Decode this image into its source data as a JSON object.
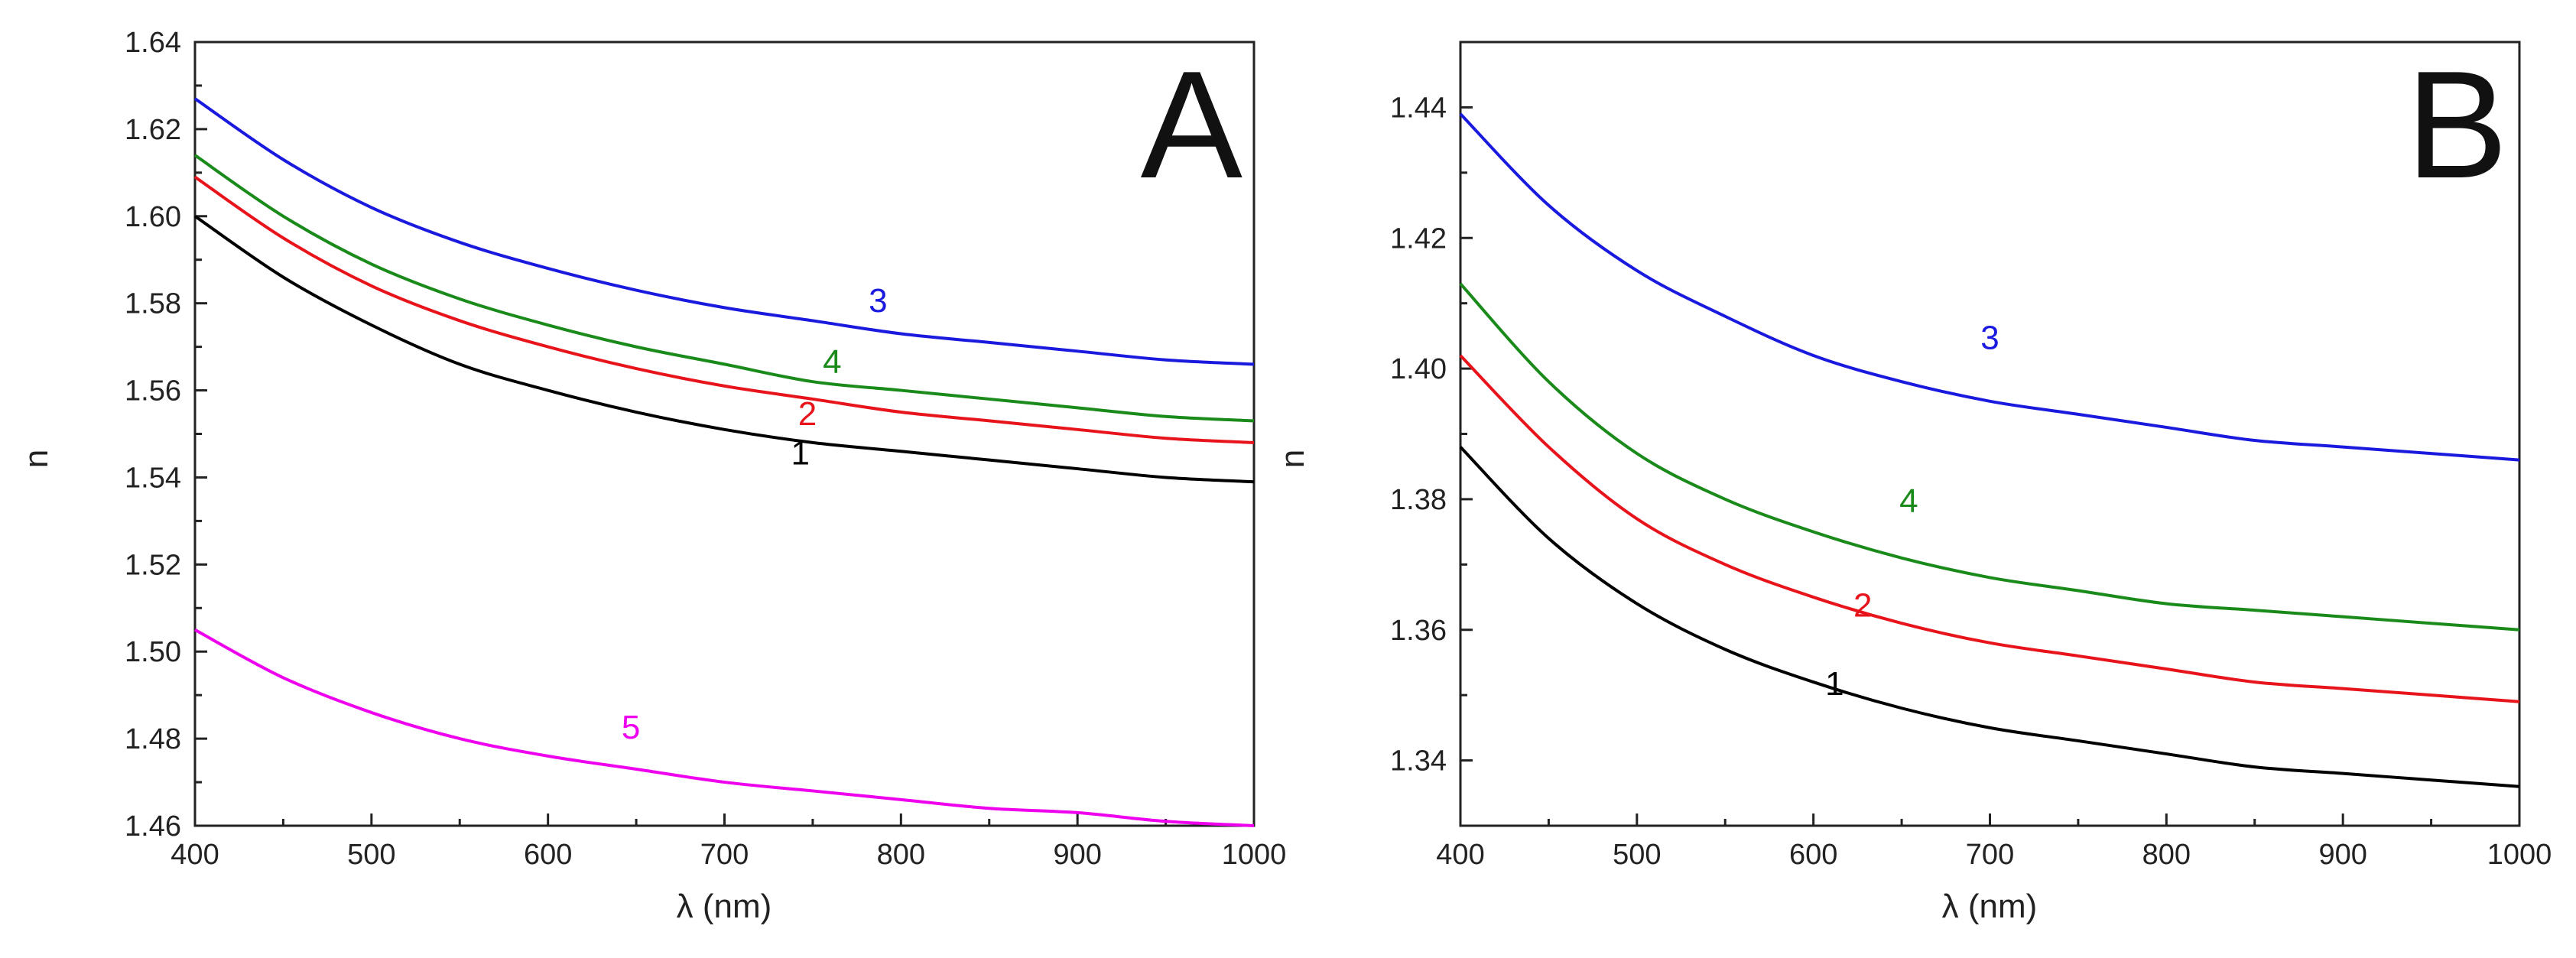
{
  "chart_data": [
    {
      "type": "line",
      "panel": "A",
      "xlabel": "λ (nm)",
      "ylabel": "n",
      "xlim": [
        400,
        1000
      ],
      "ylim": [
        1.46,
        1.64
      ],
      "xticks": [
        400,
        500,
        600,
        700,
        800,
        900,
        1000
      ],
      "yticks": [
        1.46,
        1.48,
        1.5,
        1.52,
        1.54,
        1.56,
        1.58,
        1.6,
        1.62,
        1.64
      ],
      "series": [
        {
          "name": "1",
          "color": "#000000",
          "x": [
            400,
            450,
            500,
            550,
            600,
            650,
            700,
            750,
            800,
            850,
            900,
            950,
            1000
          ],
          "y": [
            1.6,
            1.586,
            1.575,
            1.566,
            1.56,
            1.555,
            1.551,
            1.548,
            1.546,
            1.544,
            1.542,
            1.54,
            1.539
          ],
          "label_at": [
            743,
            1.543
          ]
        },
        {
          "name": "2",
          "color": "#e8141b",
          "x": [
            400,
            450,
            500,
            550,
            600,
            650,
            700,
            750,
            800,
            850,
            900,
            950,
            1000
          ],
          "y": [
            1.609,
            1.595,
            1.584,
            1.576,
            1.57,
            1.565,
            1.561,
            1.558,
            1.555,
            1.553,
            1.551,
            1.549,
            1.548
          ],
          "label_at": [
            747,
            1.552
          ]
        },
        {
          "name": "3",
          "color": "#1a1adf",
          "x": [
            400,
            450,
            500,
            550,
            600,
            650,
            700,
            750,
            800,
            850,
            900,
            950,
            1000
          ],
          "y": [
            1.627,
            1.613,
            1.602,
            1.594,
            1.588,
            1.583,
            1.579,
            1.576,
            1.573,
            1.571,
            1.569,
            1.567,
            1.566
          ],
          "label_at": [
            787,
            1.578
          ]
        },
        {
          "name": "4",
          "color": "#1a8a1a",
          "x": [
            400,
            450,
            500,
            550,
            600,
            650,
            700,
            750,
            800,
            850,
            900,
            950,
            1000
          ],
          "y": [
            1.614,
            1.6,
            1.589,
            1.581,
            1.575,
            1.57,
            1.566,
            1.562,
            1.56,
            1.558,
            1.556,
            1.554,
            1.553
          ],
          "label_at": [
            761,
            1.564
          ]
        },
        {
          "name": "5",
          "color": "#ee00ee",
          "x": [
            400,
            450,
            500,
            550,
            600,
            650,
            700,
            750,
            800,
            850,
            900,
            950,
            1000
          ],
          "y": [
            1.505,
            1.494,
            1.486,
            1.48,
            1.476,
            1.473,
            1.47,
            1.468,
            1.466,
            1.464,
            1.463,
            1.461,
            1.46
          ],
          "label_at": [
            647,
            1.48
          ]
        }
      ]
    },
    {
      "type": "line",
      "panel": "B",
      "xlabel": "λ (nm)",
      "ylabel": "n",
      "xlim": [
        400,
        1000
      ],
      "ylim": [
        1.33,
        1.45
      ],
      "xticks": [
        400,
        500,
        600,
        700,
        800,
        900,
        1000
      ],
      "yticks": [
        1.34,
        1.36,
        1.38,
        1.4,
        1.42,
        1.44
      ],
      "series": [
        {
          "name": "1",
          "color": "#000000",
          "x": [
            400,
            450,
            500,
            550,
            600,
            650,
            700,
            750,
            800,
            850,
            900,
            950,
            1000
          ],
          "y": [
            1.388,
            1.374,
            1.364,
            1.357,
            1.352,
            1.348,
            1.345,
            1.343,
            1.341,
            1.339,
            1.338,
            1.337,
            1.336
          ],
          "label_at": [
            612,
            1.35
          ]
        },
        {
          "name": "2",
          "color": "#e8141b",
          "x": [
            400,
            450,
            500,
            550,
            600,
            650,
            700,
            750,
            800,
            850,
            900,
            950,
            1000
          ],
          "y": [
            1.402,
            1.388,
            1.377,
            1.37,
            1.365,
            1.361,
            1.358,
            1.356,
            1.354,
            1.352,
            1.351,
            1.35,
            1.349
          ],
          "label_at": [
            628,
            1.362
          ]
        },
        {
          "name": "3",
          "color": "#1a1adf",
          "x": [
            400,
            450,
            500,
            550,
            600,
            650,
            700,
            750,
            800,
            850,
            900,
            950,
            1000
          ],
          "y": [
            1.439,
            1.425,
            1.415,
            1.408,
            1.402,
            1.398,
            1.395,
            1.393,
            1.391,
            1.389,
            1.388,
            1.387,
            1.386
          ],
          "label_at": [
            700,
            1.403
          ]
        },
        {
          "name": "4",
          "color": "#1a8a1a",
          "x": [
            400,
            450,
            500,
            550,
            600,
            650,
            700,
            750,
            800,
            850,
            900,
            950,
            1000
          ],
          "y": [
            1.413,
            1.398,
            1.387,
            1.38,
            1.375,
            1.371,
            1.368,
            1.366,
            1.364,
            1.363,
            1.362,
            1.361,
            1.36
          ],
          "label_at": [
            654,
            1.378
          ]
        }
      ]
    }
  ]
}
